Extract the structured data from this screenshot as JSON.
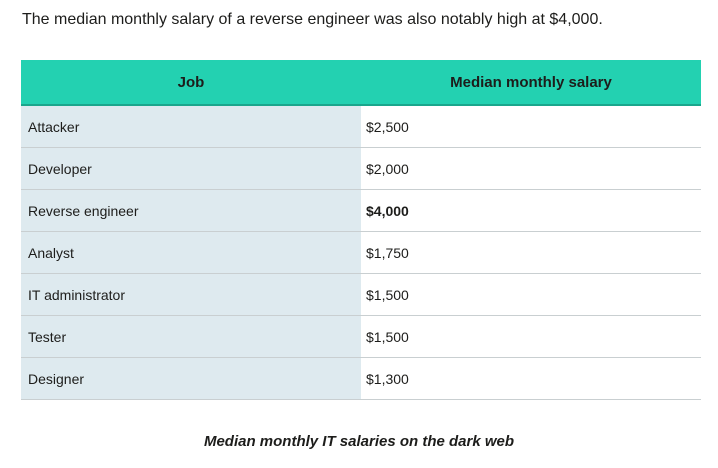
{
  "intro_text": "The median monthly salary of a reverse engineer was also notably high at $4,000.",
  "table": {
    "headers": [
      "Job",
      "Median monthly salary"
    ],
    "rows": [
      {
        "job": "Attacker",
        "salary": "$2,500"
      },
      {
        "job": "Developer",
        "salary": "$2,000"
      },
      {
        "job": "Reverse engineer",
        "salary": "$4,000",
        "emphasized": true
      },
      {
        "job": "Analyst",
        "salary": "$1,750"
      },
      {
        "job": "IT administrator",
        "salary": "$1,500"
      },
      {
        "job": "Tester",
        "salary": "$1,500"
      },
      {
        "job": "Designer",
        "salary": "$1,300"
      }
    ]
  },
  "caption": "Median monthly IT salaries on the dark web",
  "colors": {
    "header_bg": "#23d1b1",
    "job_column_bg": "#deeaef"
  }
}
